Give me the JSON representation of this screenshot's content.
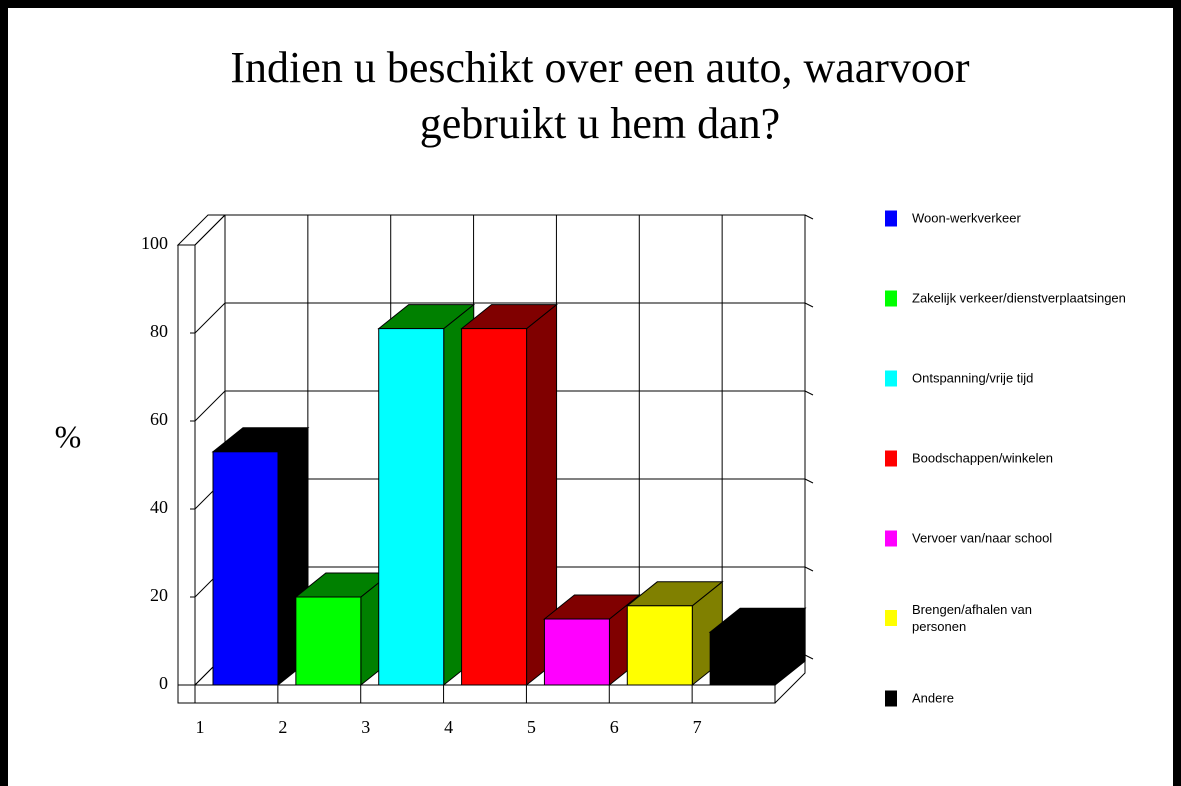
{
  "chart_data": {
    "type": "bar3d",
    "title": "Indien u beschikt over een auto, waarvoor gebruikt u hem dan?",
    "ylabel": "%",
    "categories": [
      "1",
      "2",
      "3",
      "4",
      "5",
      "6",
      "7"
    ],
    "values": [
      53,
      20,
      81,
      81,
      15,
      18,
      12
    ],
    "colors": [
      "#0000ff",
      "#00ff00",
      "#00ffff",
      "#ff0000",
      "#ff00ff",
      "#ffff00",
      "#000000"
    ],
    "side_colors": [
      "#000000",
      "#008000",
      "#008000",
      "#800000",
      "#800000",
      "#808000",
      "#000000"
    ],
    "legend": [
      "Woon-werkverkeer",
      "Zakelijk verkeer/dienstverplaatsingen",
      "Ontspanning/vrije tijd",
      "Boodschappen/winkelen",
      "Vervoer van/naar school",
      "Brengen/afhalen van personen",
      "Andere"
    ],
    "ylim": [
      0,
      100
    ],
    "yticks": [
      0,
      20,
      40,
      60,
      80,
      100
    ],
    "grid": true
  }
}
